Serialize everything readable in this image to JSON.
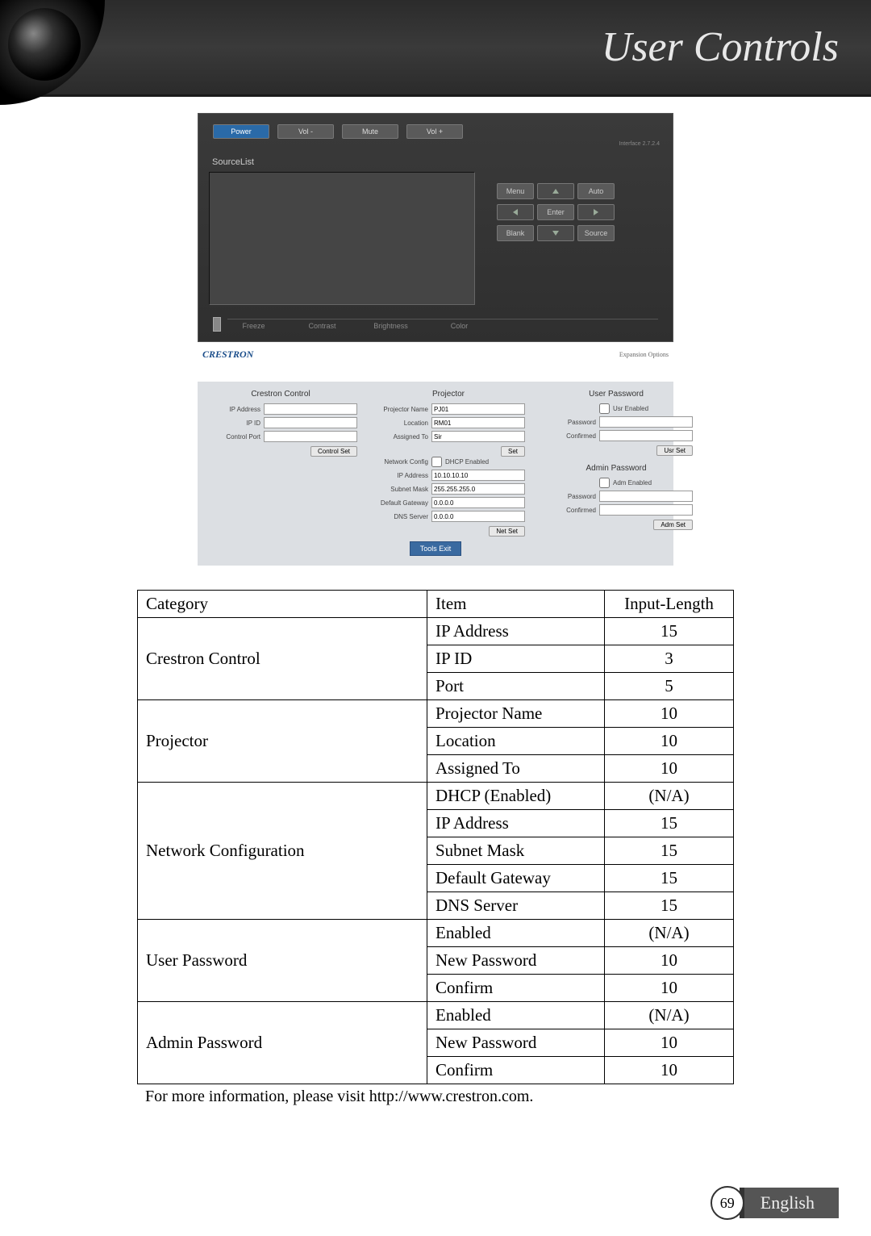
{
  "header": {
    "title": "User Controls"
  },
  "control_panel": {
    "top_buttons": [
      "Power",
      "Vol -",
      "Mute",
      "Vol +"
    ],
    "interface_ver": "Interface 2.7.2.4",
    "source_list_label": "SourceList",
    "nav": {
      "menu": "Menu",
      "auto": "Auto",
      "enter": "Enter",
      "blank": "Blank",
      "source": "Source"
    },
    "sliders": [
      "Freeze",
      "Contrast",
      "Brightness",
      "Color"
    ],
    "logo": "CRESTRON",
    "expansion": "Expansion Options"
  },
  "settings": {
    "cols": {
      "crestron": {
        "title": "Crestron Control",
        "rows": [
          {
            "label": "IP Address",
            "value": ""
          },
          {
            "label": "IP ID",
            "value": ""
          },
          {
            "label": "Control Port",
            "value": ""
          }
        ],
        "btn": "Control Set"
      },
      "projector": {
        "title": "Projector",
        "rows1": [
          {
            "label": "Projector Name",
            "value": "PJ01"
          },
          {
            "label": "Location",
            "value": "RM01"
          },
          {
            "label": "Assigned To",
            "value": "Sir"
          }
        ],
        "btn1": "Set",
        "net_label": "Network Config",
        "dhcp": "DHCP Enabled",
        "rows2": [
          {
            "label": "IP Address",
            "value": "10.10.10.10"
          },
          {
            "label": "Subnet Mask",
            "value": "255.255.255.0"
          },
          {
            "label": "Default Gateway",
            "value": "0.0.0.0"
          },
          {
            "label": "DNS Server",
            "value": "0.0.0.0"
          }
        ],
        "btn2": "Net Set"
      },
      "user_pwd": {
        "title": "User Password",
        "enabled": "Usr Enabled",
        "rows": [
          {
            "label": "Password",
            "value": ""
          },
          {
            "label": "Confirmed",
            "value": ""
          }
        ],
        "btn": "Usr Set"
      },
      "admin_pwd": {
        "title": "Admin Password",
        "enabled": "Adm Enabled",
        "rows": [
          {
            "label": "Password",
            "value": ""
          },
          {
            "label": "Confirmed",
            "value": ""
          }
        ],
        "btn": "Adm Set"
      }
    },
    "tools_exit": "Tools Exit"
  },
  "table": {
    "headers": [
      "Category",
      "Item",
      "Input-Length"
    ],
    "groups": [
      {
        "category": "Crestron Control",
        "rows": [
          {
            "item": "IP Address",
            "len": "15"
          },
          {
            "item": "IP ID",
            "len": "3"
          },
          {
            "item": "Port",
            "len": "5"
          }
        ]
      },
      {
        "category": "Projector",
        "rows": [
          {
            "item": "Projector Name",
            "len": "10"
          },
          {
            "item": "Location",
            "len": "10"
          },
          {
            "item": "Assigned To",
            "len": "10"
          }
        ]
      },
      {
        "category": "Network Configuration",
        "rows": [
          {
            "item": "DHCP (Enabled)",
            "len": "(N/A)"
          },
          {
            "item": "IP Address",
            "len": "15"
          },
          {
            "item": "Subnet Mask",
            "len": "15"
          },
          {
            "item": "Default Gateway",
            "len": "15"
          },
          {
            "item": "DNS Server",
            "len": "15"
          }
        ]
      },
      {
        "category": "User Password",
        "rows": [
          {
            "item": "Enabled",
            "len": "(N/A)"
          },
          {
            "item": "New Password",
            "len": "10"
          },
          {
            "item": "Confirm",
            "len": "10"
          }
        ]
      },
      {
        "category": "Admin Password",
        "rows": [
          {
            "item": "Enabled",
            "len": "(N/A)"
          },
          {
            "item": "New Password",
            "len": "10"
          },
          {
            "item": "Confirm",
            "len": "10"
          }
        ]
      }
    ]
  },
  "footnote": "For more information, please visit http://www.crestron.com.",
  "footer": {
    "page": "69",
    "lang": "English"
  }
}
